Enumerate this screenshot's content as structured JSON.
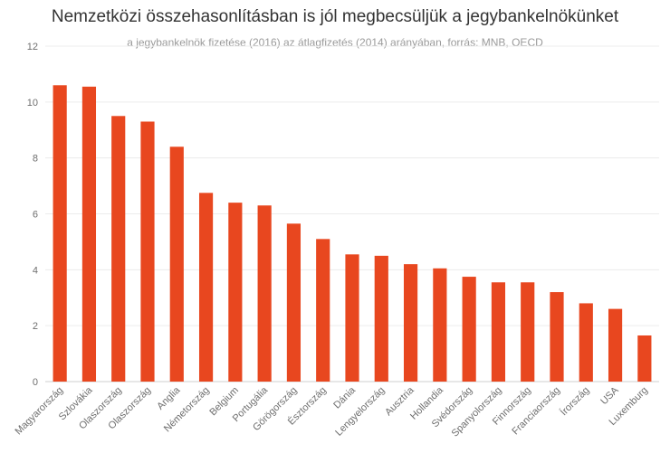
{
  "chart_data": {
    "type": "bar",
    "title": "Nemzetközi összehasonlításban is jól megbecsüljük a jegybankelnökünket",
    "subtitle": "a jegybankelnök fizetése (2016) az átlagfizetés (2014) arányában, forrás: MNB, OECD",
    "xlabel": "",
    "ylabel": "",
    "categories": [
      "Magyarország",
      "Szlovákia",
      "Olaszország",
      "Olaszország",
      "Anglia",
      "Németország",
      "Belgium",
      "Portugália",
      "Görögország",
      "Észtország",
      "Dánia",
      "Lengyelország",
      "Ausztria",
      "Hollandia",
      "Svédország",
      "Spanyolország",
      "Finnország",
      "Franciaország",
      "Írország",
      "USA",
      "Luxemburg"
    ],
    "values": [
      10.6,
      10.55,
      9.5,
      9.3,
      8.4,
      6.75,
      6.4,
      6.3,
      5.65,
      5.1,
      4.55,
      4.5,
      4.2,
      4.05,
      3.75,
      3.55,
      3.55,
      3.2,
      2.8,
      2.6,
      1.65
    ],
    "ylim": [
      0,
      12
    ],
    "yticks": [
      0,
      2,
      4,
      6,
      8,
      10,
      12
    ],
    "grid": true,
    "legend": "none",
    "bar_color": "#e8471f"
  }
}
